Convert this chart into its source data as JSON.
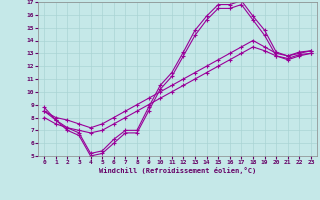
{
  "xlabel": "Windchill (Refroidissement éolien,°C)",
  "xlim": [
    -0.5,
    23.5
  ],
  "ylim": [
    5,
    17
  ],
  "xticks": [
    0,
    1,
    2,
    3,
    4,
    5,
    6,
    7,
    8,
    9,
    10,
    11,
    12,
    13,
    14,
    15,
    16,
    17,
    18,
    19,
    20,
    21,
    22,
    23
  ],
  "yticks": [
    5,
    6,
    7,
    8,
    9,
    10,
    11,
    12,
    13,
    14,
    15,
    16,
    17
  ],
  "bg_color": "#c5e8e8",
  "grid_color": "#aad4d4",
  "line_color": "#990099",
  "line1_x": [
    0,
    1,
    2,
    3,
    4,
    5,
    6,
    7,
    8,
    9,
    10,
    11,
    12,
    13,
    14,
    15,
    16,
    17,
    18,
    19,
    20,
    21,
    22,
    23
  ],
  "line1_y": [
    8.8,
    7.8,
    7.2,
    6.8,
    5.2,
    5.4,
    6.3,
    7.0,
    7.0,
    8.8,
    10.5,
    11.5,
    13.1,
    14.8,
    15.9,
    16.8,
    16.8,
    17.1,
    15.9,
    14.8,
    13.1,
    12.8,
    13.1,
    13.2
  ],
  "line2_x": [
    0,
    1,
    2,
    3,
    4,
    5,
    6,
    7,
    8,
    9,
    10,
    11,
    12,
    13,
    14,
    15,
    16,
    17,
    18,
    19,
    20,
    21,
    22,
    23
  ],
  "line2_y": [
    8.5,
    7.8,
    7.0,
    6.6,
    5.0,
    5.2,
    6.0,
    6.8,
    6.8,
    8.5,
    10.2,
    11.2,
    12.8,
    14.4,
    15.6,
    16.5,
    16.5,
    16.8,
    15.6,
    14.4,
    12.8,
    12.6,
    12.9,
    13.0
  ],
  "line3_x": [
    0,
    1,
    2,
    3,
    4,
    5,
    6,
    7,
    8,
    9,
    10,
    11,
    12,
    13,
    14,
    15,
    16,
    17,
    18,
    19,
    20,
    21,
    22,
    23
  ],
  "line3_y": [
    8.5,
    8.0,
    7.8,
    7.5,
    7.2,
    7.5,
    8.0,
    8.5,
    9.0,
    9.5,
    10.0,
    10.5,
    11.0,
    11.5,
    12.0,
    12.5,
    13.0,
    13.5,
    14.0,
    13.5,
    13.0,
    12.8,
    13.0,
    13.2
  ],
  "line4_x": [
    0,
    1,
    2,
    3,
    4,
    5,
    6,
    7,
    8,
    9,
    10,
    11,
    12,
    13,
    14,
    15,
    16,
    17,
    18,
    19,
    20,
    21,
    22,
    23
  ],
  "line4_y": [
    8.0,
    7.5,
    7.2,
    7.0,
    6.8,
    7.0,
    7.5,
    8.0,
    8.5,
    9.0,
    9.5,
    10.0,
    10.5,
    11.0,
    11.5,
    12.0,
    12.5,
    13.0,
    13.5,
    13.2,
    12.8,
    12.5,
    12.8,
    13.0
  ],
  "marker": "+",
  "markersize": 3,
  "linewidth": 0.8
}
